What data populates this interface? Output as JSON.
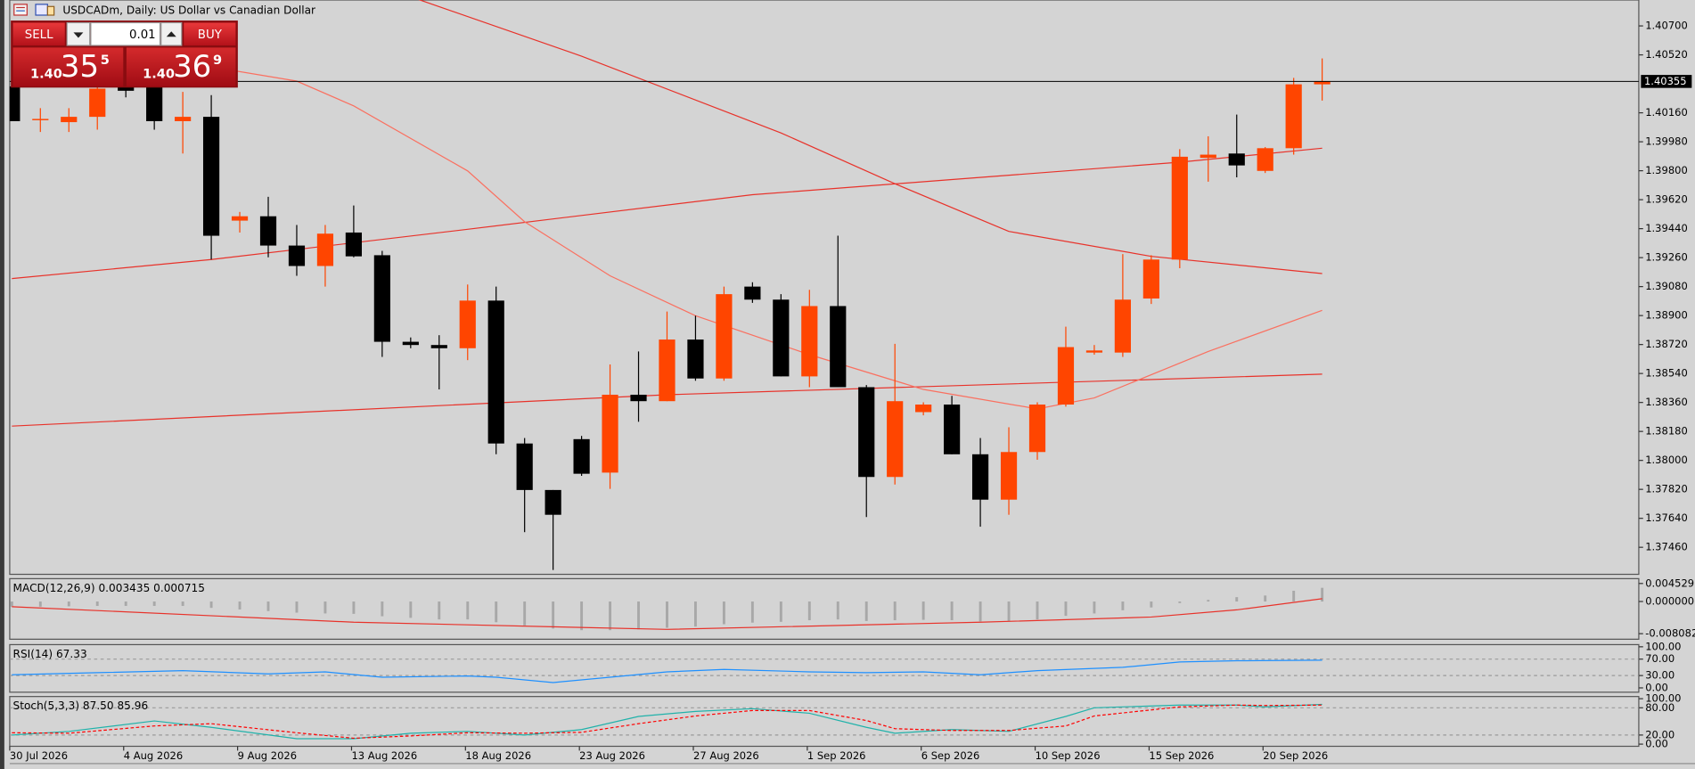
{
  "header": {
    "title": "USDCADm, Daily:  US Dollar vs Canadian Dollar"
  },
  "trade_panel": {
    "sell": "SELL",
    "buy": "BUY",
    "lot": "0.01",
    "sell_price": {
      "prefix": "1.40",
      "main": "35",
      "pip": "5"
    },
    "buy_price": {
      "prefix": "1.40",
      "main": "36",
      "pip": "9"
    }
  },
  "chart_data": [
    {
      "type": "candlestick",
      "categories": [
        "30 Jul 2026",
        null,
        null,
        null,
        "4 Aug 2026",
        null,
        null,
        null,
        "9 Aug 2026",
        null,
        null,
        null,
        "13 Aug 2026",
        null,
        null,
        null,
        "18 Aug 2026",
        null,
        null,
        null,
        "23 Aug 2026",
        null,
        null,
        null,
        "27 Aug 2026",
        null,
        null,
        null,
        "1 Sep 2026",
        null,
        null,
        null,
        "6 Sep 2026",
        null,
        null,
        null,
        "10 Sep 2026",
        null,
        null,
        null,
        "15 Sep 2026",
        null,
        null,
        null,
        "20 Sep 2026",
        null,
        null
      ],
      "open": [
        1.40324,
        1.40115,
        1.40102,
        1.40135,
        1.40324,
        1.40324,
        1.40108,
        1.40135,
        1.3949,
        1.39517,
        1.39335,
        1.39208,
        1.39416,
        1.39275,
        1.38737,
        1.38717,
        1.38697,
        1.38993,
        1.38105,
        1.37816,
        1.38132,
        1.37924,
        1.38408,
        1.38368,
        1.38751,
        1.38509,
        1.3908,
        1.38999,
        1.38522,
        1.38959,
        1.38455,
        1.37897,
        1.383,
        1.38347,
        1.38038,
        1.37756,
        1.38052,
        1.38347,
        1.3867,
        1.3867,
        1.39006,
        1.39248,
        1.3988,
        1.39907,
        1.39799,
        1.3994,
        1.40337
      ],
      "high": [
        1.40357,
        1.40189,
        1.40189,
        1.40357,
        1.40391,
        1.40391,
        1.4029,
        1.4027,
        1.39544,
        1.39638,
        1.39463,
        1.39463,
        1.39584,
        1.39302,
        1.38764,
        1.38778,
        1.39093,
        1.3908,
        1.38139,
        1.37816,
        1.38152,
        1.38596,
        1.38677,
        1.38925,
        1.38899,
        1.3908,
        1.39107,
        1.39033,
        1.3906,
        1.39396,
        1.38468,
        1.38724,
        1.38361,
        1.38401,
        1.38139,
        1.38206,
        1.38361,
        1.38831,
        1.38717,
        1.39282,
        1.39275,
        1.39934,
        1.40014,
        1.40149,
        1.39947,
        1.40377,
        1.40498
      ],
      "low": [
        1.40108,
        1.40041,
        1.40041,
        1.40055,
        1.40256,
        1.40055,
        1.39907,
        1.39248,
        1.39416,
        1.39262,
        1.39147,
        1.3908,
        1.39262,
        1.38643,
        1.38697,
        1.38441,
        1.38623,
        1.38038,
        1.37554,
        1.37319,
        1.37904,
        1.37823,
        1.3824,
        1.38368,
        1.38495,
        1.38495,
        1.38979,
        1.38522,
        1.38455,
        1.38455,
        1.37648,
        1.3785,
        1.3828,
        1.38038,
        1.37588,
        1.37662,
        1.38004,
        1.38334,
        1.38657,
        1.38643,
        1.38972,
        1.39194,
        1.39732,
        1.39759,
        1.39786,
        1.399,
        1.40236
      ],
      "close": [
        1.40108,
        1.40122,
        1.40135,
        1.4031,
        1.40297,
        1.40108,
        1.40135,
        1.39396,
        1.39517,
        1.39335,
        1.39208,
        1.39409,
        1.39268,
        1.38737,
        1.38717,
        1.38697,
        1.38993,
        1.38105,
        1.37816,
        1.37662,
        1.37917,
        1.38408,
        1.38368,
        1.38751,
        1.38509,
        1.39033,
        1.38999,
        1.38522,
        1.38959,
        1.38455,
        1.37897,
        1.38368,
        1.38347,
        1.38038,
        1.37756,
        1.38052,
        1.38347,
        1.38704,
        1.38683,
        1.38999,
        1.39248,
        1.39887,
        1.399,
        1.39833,
        1.3994,
        1.40337,
        1.40355
      ],
      "up_color": "#ff4500",
      "down_color": "#000000",
      "price_line": 1.40355,
      "ylim": [
        1.37292,
        1.40861
      ],
      "yticks": [
        {
          "value": 1.407,
          "label": "1.40700"
        },
        {
          "value": 1.4052,
          "label": "1.40520"
        },
        {
          "value": 1.4016,
          "label": "1.40160"
        },
        {
          "value": 1.3998,
          "label": "1.39980"
        },
        {
          "value": 1.398,
          "label": "1.39800"
        },
        {
          "value": 1.3962,
          "label": "1.39620"
        },
        {
          "value": 1.3944,
          "label": "1.39440"
        },
        {
          "value": 1.3926,
          "label": "1.39260"
        },
        {
          "value": 1.3908,
          "label": "1.39080"
        },
        {
          "value": 1.389,
          "label": "1.38900"
        },
        {
          "value": 1.3872,
          "label": "1.38720"
        },
        {
          "value": 1.3854,
          "label": "1.38540"
        },
        {
          "value": 1.3836,
          "label": "1.38360"
        },
        {
          "value": 1.3818,
          "label": "1.38180"
        },
        {
          "value": 1.38,
          "label": "1.38000"
        },
        {
          "value": 1.3782,
          "label": "1.37820"
        },
        {
          "value": 1.3764,
          "label": "1.37640"
        },
        {
          "value": 1.3746,
          "label": "1.37460"
        }
      ],
      "grid": false,
      "overlays": [
        {
          "color": "#e8322a",
          "x": [
            0,
            23,
            46
          ],
          "values": [
            1.38213,
            1.38408,
            1.38536
          ]
        },
        {
          "color": "#e8322a",
          "x": [
            0,
            7,
            16,
            26,
            33,
            41,
            46
          ],
          "values": [
            1.3913,
            1.39248,
            1.39436,
            1.39651,
            1.39745,
            1.39853,
            1.3994
          ]
        },
        {
          "color": "#e8322a",
          "x": [
            14,
            20,
            27,
            31,
            35,
            40,
            46
          ],
          "values": [
            1.40881,
            1.40512,
            1.40035,
            1.39719,
            1.39423,
            1.39268,
            1.39161
          ]
        },
        {
          "color": "#fa7060",
          "x": [
            7,
            10,
            12,
            16,
            18,
            21,
            24,
            28,
            32,
            36,
            38,
            42,
            46
          ],
          "values": [
            1.40445,
            1.40357,
            1.40203,
            1.39799,
            1.39483,
            1.39147,
            1.38899,
            1.38657,
            1.38441,
            1.3832,
            1.38388,
            1.38677,
            1.38932
          ]
        }
      ]
    },
    {
      "type": "macd",
      "label": "MACD(12,26,9) 0.003435 0.000715",
      "values": [
        -0.0013,
        -0.0013,
        -0.0012,
        -0.0011,
        -0.0011,
        -0.0011,
        -0.0011,
        -0.0016,
        -0.002,
        -0.0024,
        -0.0028,
        -0.003,
        -0.0031,
        -0.0037,
        -0.0041,
        -0.0045,
        -0.0045,
        -0.0052,
        -0.006,
        -0.0068,
        -0.0072,
        -0.0072,
        -0.007,
        -0.0066,
        -0.0063,
        -0.0057,
        -0.0053,
        -0.0051,
        -0.0047,
        -0.0045,
        -0.0049,
        -0.0047,
        -0.0046,
        -0.0047,
        -0.005,
        -0.005,
        -0.0045,
        -0.0036,
        -0.003,
        -0.0022,
        -0.0015,
        -0.0004,
        0.0004,
        0.0011,
        0.0015,
        0.0027,
        0.003435
      ],
      "color": "#a8a8a8",
      "signal": {
        "color": "#e8322a",
        "x": [
          0,
          12,
          23,
          34,
          40,
          43,
          46
        ],
        "values": [
          -0.0013,
          -0.0052,
          -0.007,
          -0.0052,
          -0.0039,
          -0.0021,
          0.000715
        ]
      },
      "ylim": [
        -0.0092,
        0.0052
      ],
      "yticks": [
        0.004529,
        {
          "value": 0,
          "label": "0.000000"
        },
        -0.008082
      ],
      "grid": false
    },
    {
      "type": "oscillator",
      "label": "RSI(14) 67.33",
      "series": [
        {
          "color": "#1e90ff",
          "dashed": false,
          "x": [
            0,
            3,
            6,
            9,
            11,
            13,
            16,
            17,
            19,
            21,
            23,
            25,
            28,
            30,
            32,
            34,
            36,
            39,
            41,
            43,
            46
          ],
          "values": [
            32,
            37,
            42,
            34,
            39,
            26,
            29,
            26,
            13,
            26,
            39,
            45,
            39,
            37,
            39,
            32,
            42,
            50,
            63,
            66,
            67.33
          ]
        }
      ],
      "ylim": [
        0,
        100
      ],
      "yticks": [
        {
          "value": 100,
          "label": "100.00"
        },
        {
          "value": 70,
          "label": "70.00"
        },
        {
          "value": 30,
          "label": "30.00"
        },
        {
          "value": 0,
          "label": "0.00"
        }
      ],
      "grid": "dashed"
    },
    {
      "type": "oscillator",
      "label": "Stoch(5,3,3) 87.50 85.96",
      "series": [
        {
          "color": "#20b2aa",
          "dashed": false,
          "x": [
            0,
            2,
            5,
            7,
            10,
            12,
            14,
            16,
            18,
            20,
            22,
            24,
            26,
            28,
            30,
            31,
            33,
            35,
            37,
            38,
            41,
            43,
            44,
            46
          ],
          "values": [
            20,
            28,
            51,
            37,
            12,
            12,
            24,
            28,
            20,
            32,
            61,
            72,
            78,
            68,
            37,
            24,
            32,
            28,
            61,
            80,
            86,
            86,
            82,
            87.5
          ]
        },
        {
          "color": "#ff0000",
          "dashed": true,
          "x": [
            0,
            2,
            5,
            7,
            10,
            12,
            14,
            16,
            18,
            20,
            22,
            24,
            26,
            28,
            30,
            31,
            33,
            35,
            37,
            38,
            41,
            43,
            44,
            46
          ],
          "values": [
            25,
            24,
            40,
            45,
            25,
            13,
            18,
            25,
            24,
            26,
            45,
            62,
            74,
            74,
            52,
            34,
            30,
            30,
            40,
            62,
            82,
            86,
            85,
            85.96
          ]
        }
      ],
      "ylim": [
        0,
        100
      ],
      "yticks": [
        {
          "value": 100,
          "label": "100.00"
        },
        {
          "value": 80,
          "label": "80.00"
        },
        {
          "value": 20,
          "label": "20.00"
        },
        {
          "value": 0,
          "label": "0.00"
        }
      ],
      "grid": "dashed"
    }
  ]
}
